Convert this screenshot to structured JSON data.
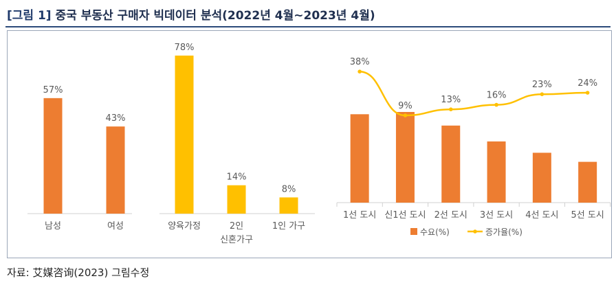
{
  "figure": {
    "label": "[그림 1]",
    "title": "중국 부동산 구매자 빅데이터 분석(2022년 4월~2023년 4월)",
    "source": "자료: 艾媒咨询(2023) 그림수정"
  },
  "colors": {
    "orange": "#ED7D31",
    "gold": "#FFC000",
    "axis": "#d0d0d0",
    "text": "#595959"
  },
  "chart_data": [
    {
      "type": "bar",
      "categories": [
        "남성",
        "여성",
        "양육가정",
        "2인\n신혼가구",
        "1인 가구"
      ],
      "values": [
        57,
        43,
        78,
        14,
        8
      ],
      "data_labels": [
        "57%",
        "43%",
        "78%",
        "14%",
        "8%"
      ],
      "colors": [
        "#ED7D31",
        "#ED7D31",
        "#FFC000",
        "#FFC000",
        "#FFC000"
      ],
      "ylim": [
        0,
        85
      ]
    },
    {
      "type": "bar",
      "categories": [
        "1선 도시",
        "신1선 도시",
        "2선 도시",
        "3선 도시",
        "4선 도시",
        "5선 도시"
      ],
      "series": [
        {
          "name": "수요(%)",
          "type": "bar",
          "values": [
            39,
            40,
            34,
            27,
            22,
            18
          ],
          "color": "#ED7D31"
        },
        {
          "name": "증가율(%)",
          "type": "line",
          "values": [
            38,
            9,
            13,
            16,
            23,
            24
          ],
          "data_labels": [
            "38%",
            "9%",
            "13%",
            "16%",
            "23%",
            "24%"
          ],
          "color": "#FFC000"
        }
      ],
      "legend": "bottom"
    }
  ]
}
